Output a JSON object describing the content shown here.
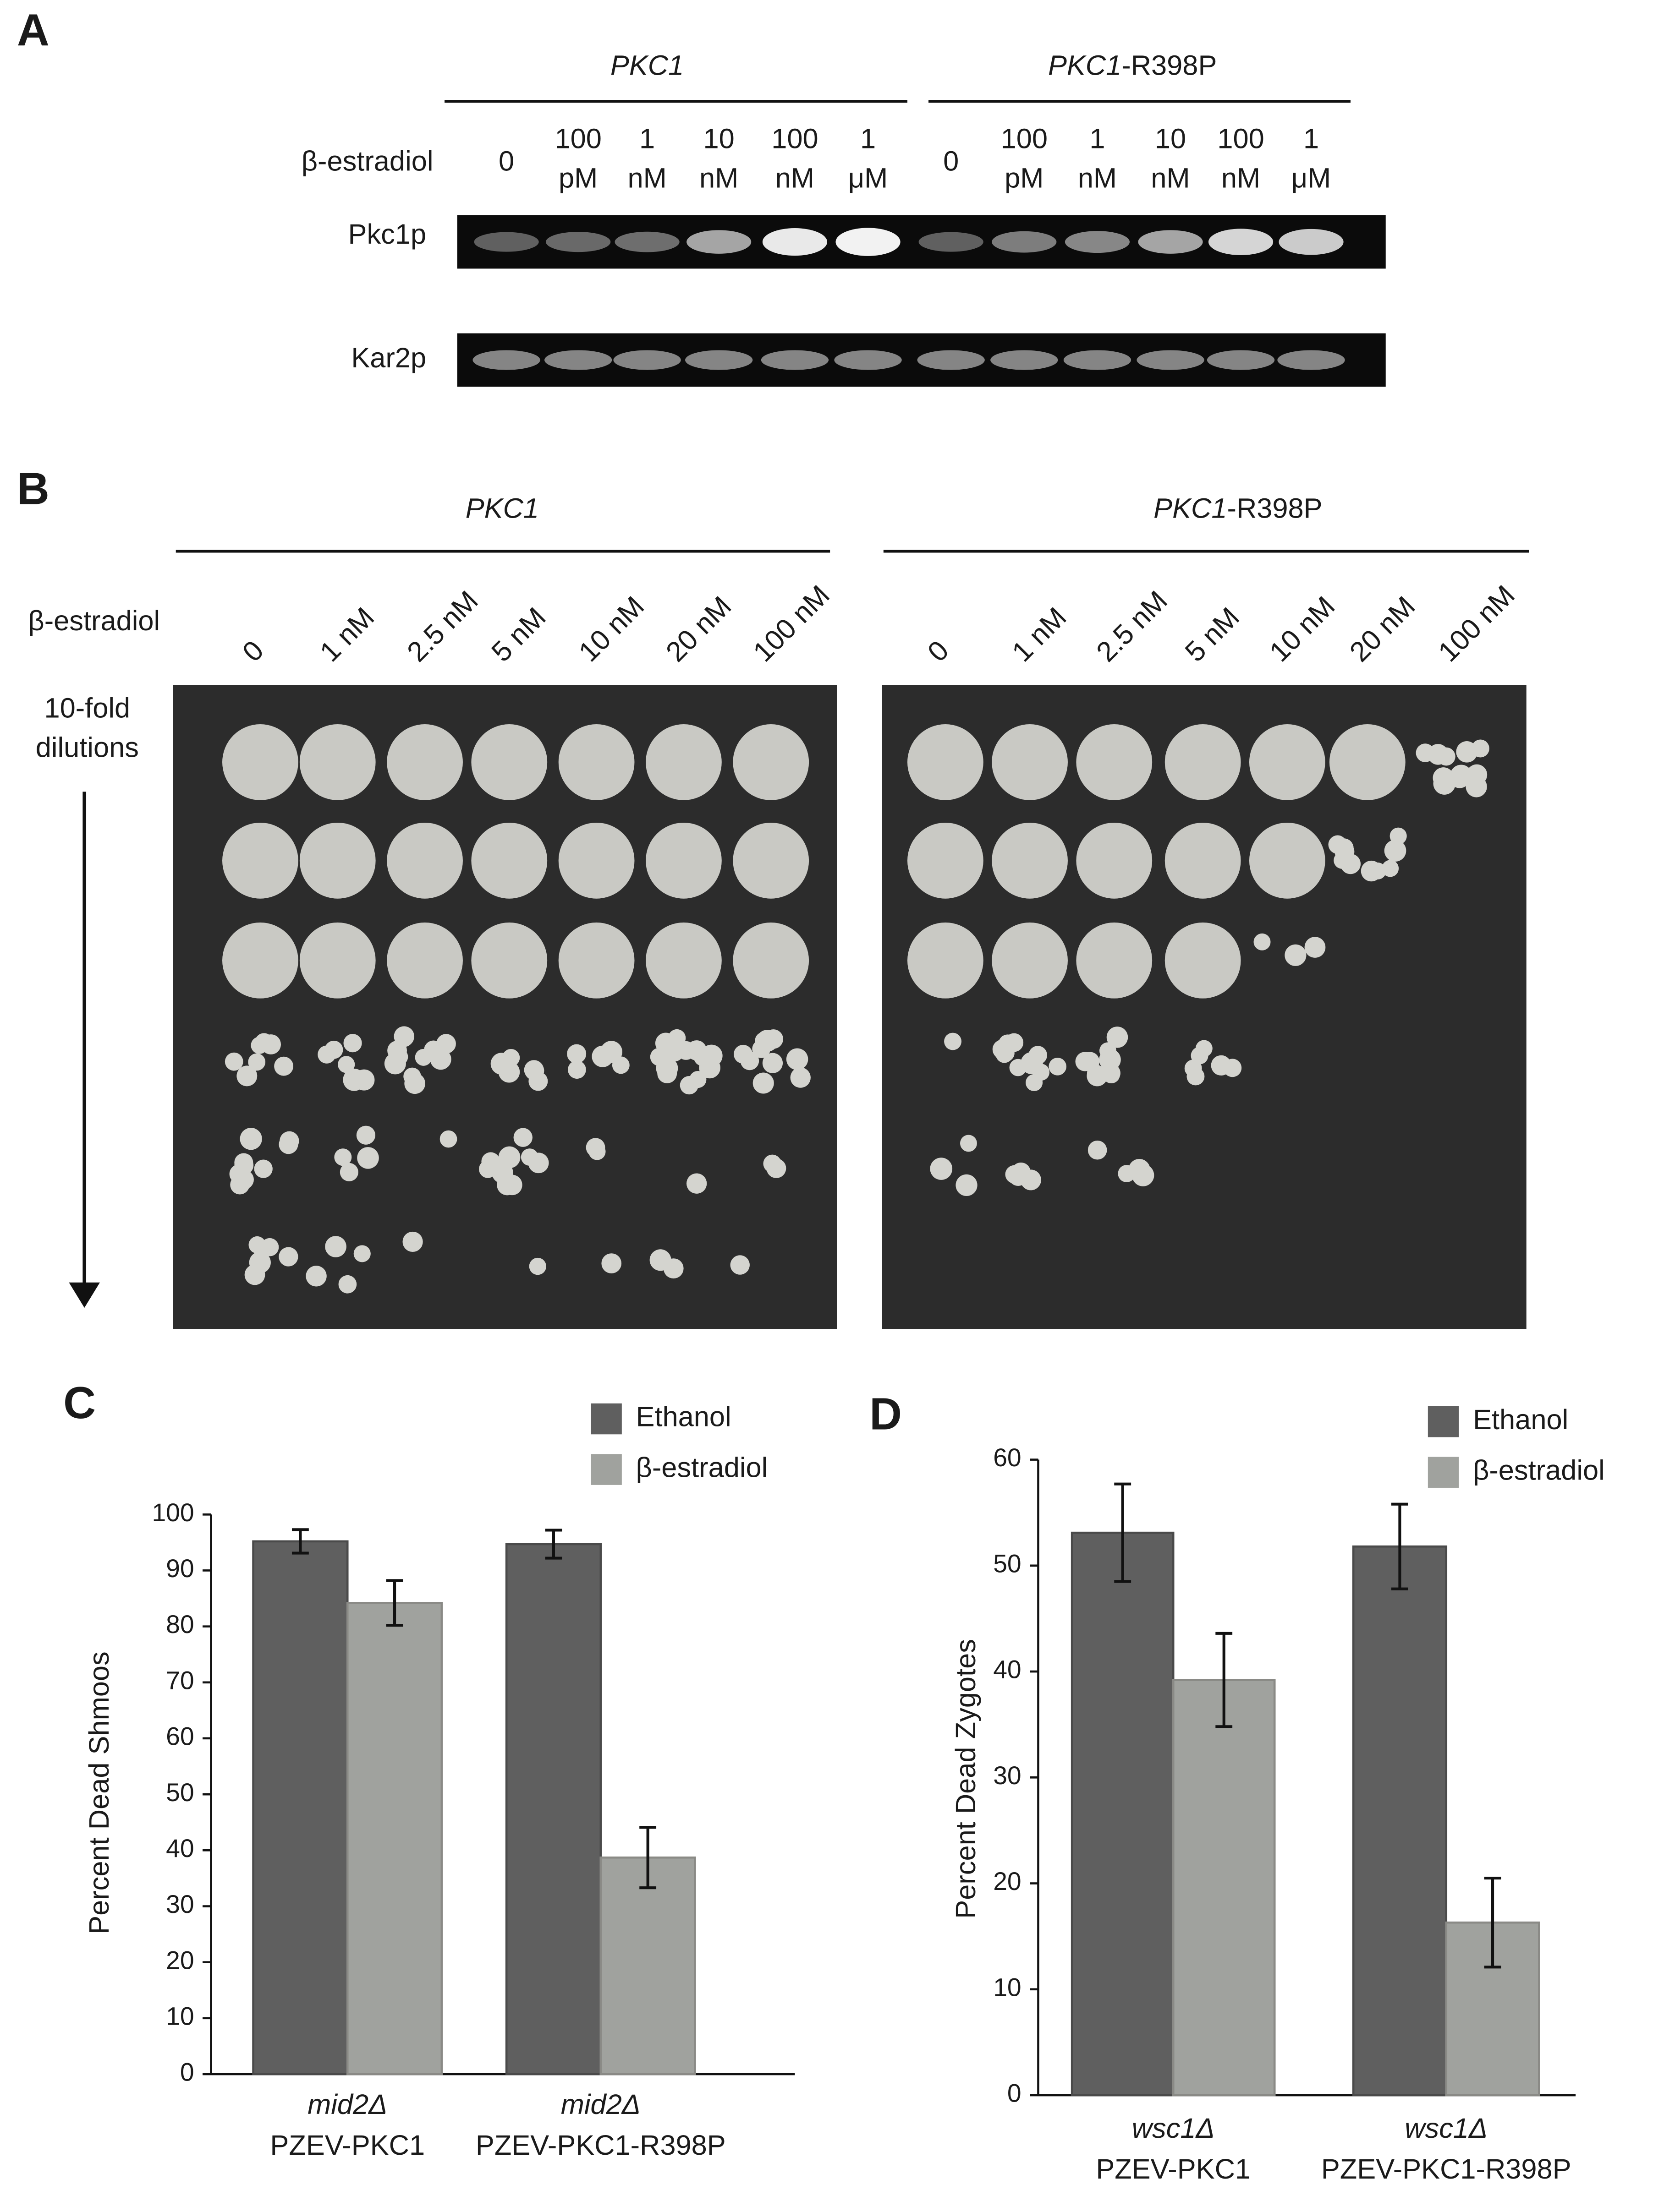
{
  "panel_a": {
    "letter": "A",
    "strains": [
      {
        "gene": "PKC1"
      },
      {
        "gene": "PKC1",
        "suffix": "-R398P"
      }
    ],
    "treatment": "β-estradiol",
    "lanes": [
      [
        "0"
      ],
      [
        "100",
        "pM"
      ],
      [
        "1",
        "nM"
      ],
      [
        "10",
        "nM"
      ],
      [
        "100",
        "nM"
      ],
      [
        "1",
        "μM"
      ]
    ],
    "blots": [
      "Pkc1p",
      "Kar2p"
    ]
  },
  "panel_b": {
    "letter": "B",
    "strains": [
      {
        "gene": "PKC1"
      },
      {
        "gene": "PKC1",
        "suffix": "-R398P"
      }
    ],
    "treatment": "β-estradiol",
    "concentrations": [
      "0",
      "1 nM",
      "2.5 nM",
      "5 nM",
      "10 nM",
      "20 nM",
      "100 nM"
    ],
    "dilution_label": [
      "10-fold",
      "dilutions"
    ]
  },
  "chart_data": [
    {
      "type": "bar",
      "panel": "C",
      "y_label": "Percent Dead Shmoos",
      "categories": [
        [
          "mid2Δ",
          "PZEV-PKC1"
        ],
        [
          "mid2Δ",
          "PZEV-PKC1-R398P"
        ]
      ],
      "series": [
        {
          "name": "Ethanol",
          "color": "#5f5f5f",
          "values": [
            95.2,
            94.7
          ],
          "errors": [
            2.1,
            2.5
          ]
        },
        {
          "name": "β-estradiol",
          "color": "#a0a29e",
          "values": [
            84.2,
            38.7
          ],
          "errors": [
            4,
            5.4
          ]
        }
      ],
      "ylim": [
        0,
        100
      ],
      "yticks": [
        0,
        10,
        20,
        30,
        40,
        50,
        60,
        70,
        80,
        90,
        100
      ],
      "legend": "top-right"
    },
    {
      "type": "bar",
      "panel": "D",
      "y_label": "Percent Dead Zygotes",
      "categories": [
        [
          "wsc1Δ",
          "PZEV-PKC1"
        ],
        [
          "wsc1Δ",
          "PZEV-PKC1-R398P"
        ]
      ],
      "series": [
        {
          "name": "Ethanol",
          "color": "#5f5f5f",
          "values": [
            53.1,
            51.8
          ],
          "errors": [
            4.6,
            4
          ],
          "_": null
        },
        {
          "name": "β-estradiol",
          "color": "#a0a29e",
          "values": [
            39.2,
            16.3
          ],
          "errors": [
            4.4,
            4.2
          ]
        }
      ],
      "ylim": [
        0,
        60
      ],
      "yticks": [
        0,
        10,
        20,
        30,
        40,
        50,
        60
      ],
      "legend": "top-right"
    }
  ]
}
